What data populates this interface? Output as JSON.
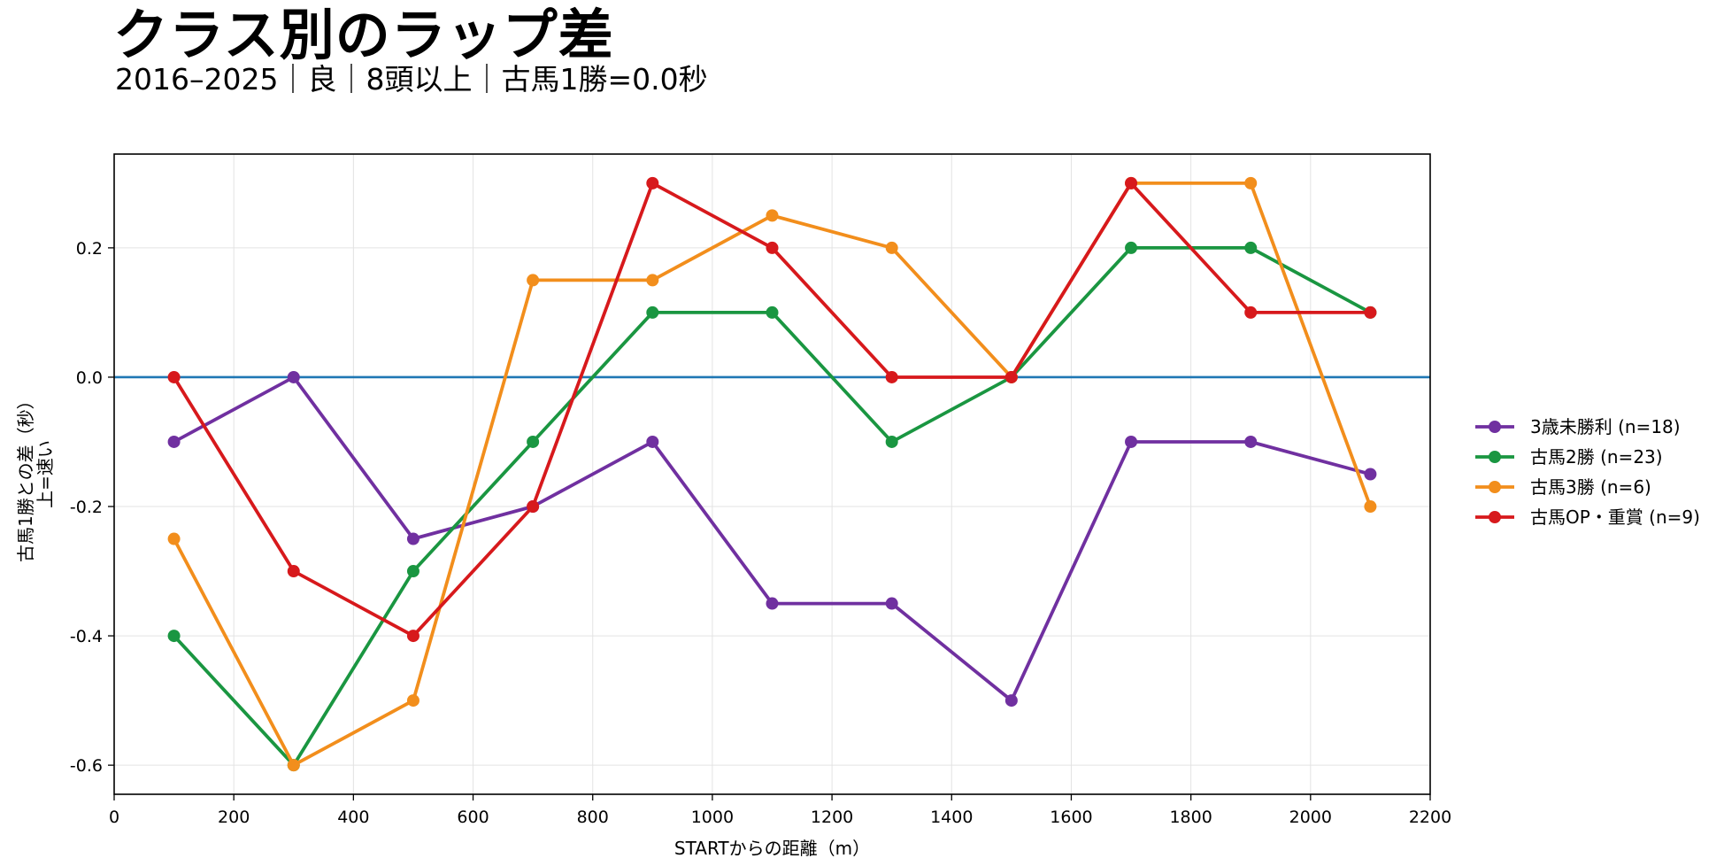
{
  "chart_data": {
    "type": "line",
    "title": "クラス別のラップ差",
    "subtitle": "2016–2025｜良｜8頭以上｜古馬1勝=0.0秒",
    "xlabel": "STARTからの距離（m）",
    "ylabel_lines": [
      "古馬1勝との差（秒）",
      "上=速い"
    ],
    "xlim": [
      0,
      2200
    ],
    "ylim": [
      -0.645,
      0.345
    ],
    "xticks": [
      0,
      200,
      400,
      600,
      800,
      1000,
      1200,
      1400,
      1600,
      1800,
      2000,
      2200
    ],
    "yticks": [
      0.2,
      0.0,
      -0.2,
      -0.4,
      -0.6
    ],
    "ytick_labels": [
      "0.2",
      "0.0",
      "-0.2",
      "-0.4",
      "-0.6"
    ],
    "grid": true,
    "baseline": {
      "y": 0.0,
      "color": "#1f77b4"
    },
    "legend_position": "right",
    "x": [
      100,
      300,
      500,
      700,
      900,
      1100,
      1300,
      1500,
      1700,
      1900,
      2100
    ],
    "series": [
      {
        "name": "3歳未勝利 (n=18)",
        "color": "#7030a0",
        "values": [
          -0.1,
          0.0,
          -0.25,
          -0.2,
          -0.1,
          -0.35,
          -0.35,
          -0.5,
          -0.1,
          -0.1,
          -0.15
        ]
      },
      {
        "name": "古馬2勝 (n=23)",
        "color": "#1a9641",
        "values": [
          -0.4,
          -0.6,
          -0.3,
          -0.1,
          0.1,
          0.1,
          -0.1,
          0.0,
          0.2,
          0.2,
          0.1
        ]
      },
      {
        "name": "古馬3勝 (n=6)",
        "color": "#f28e1c",
        "values": [
          -0.25,
          -0.6,
          -0.5,
          0.15,
          0.15,
          0.25,
          0.2,
          0.0,
          0.3,
          0.3,
          -0.2
        ]
      },
      {
        "name": "古馬OP・重賞 (n=9)",
        "color": "#d7191c",
        "values": [
          0.0,
          -0.3,
          -0.4,
          -0.2,
          0.3,
          0.2,
          0.0,
          0.0,
          0.3,
          0.1,
          0.1
        ]
      }
    ]
  }
}
